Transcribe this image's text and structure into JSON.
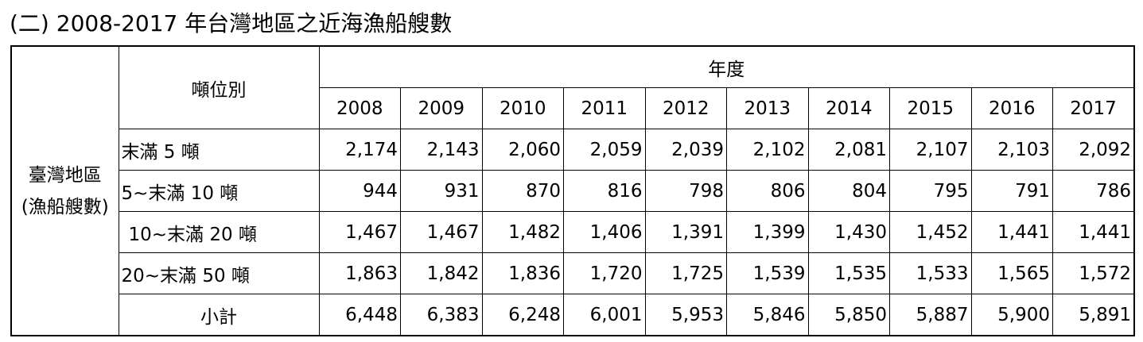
{
  "title": "(二) 2008-2017 年台灣地區之近海漁船艘數",
  "table": {
    "row_group": [
      "臺灣地區",
      "(漁船艘數)"
    ],
    "tonnage_header": "噸位別",
    "year_header": "年度",
    "years": [
      "2008",
      "2009",
      "2010",
      "2011",
      "2012",
      "2013",
      "2014",
      "2015",
      "2016",
      "2017"
    ],
    "rows": [
      {
        "label": "末滿 5 噸",
        "values": [
          "2,174",
          "2,143",
          "2,060",
          "2,059",
          "2,039",
          "2,102",
          "2,081",
          "2,107",
          "2,103",
          "2,092"
        ]
      },
      {
        "label": "5~末滿 10 噸",
        "values": [
          "944",
          "931",
          "870",
          "816",
          "798",
          "806",
          "804",
          "795",
          "791",
          "786"
        ]
      },
      {
        "label": "10~末滿 20 噸",
        "values": [
          "1,467",
          "1,467",
          "1,482",
          "1,406",
          "1,391",
          "1,399",
          "1,430",
          "1,452",
          "1,441",
          "1,441"
        ]
      },
      {
        "label": "20~末滿 50 噸",
        "values": [
          "1,863",
          "1,842",
          "1,836",
          "1,720",
          "1,725",
          "1,539",
          "1,535",
          "1,533",
          "1,565",
          "1,572"
        ]
      },
      {
        "label": "小計",
        "values": [
          "6,448",
          "6,383",
          "6,248",
          "6,001",
          "5,953",
          "5,846",
          "5,850",
          "5,887",
          "5,900",
          "5,891"
        ]
      }
    ]
  }
}
